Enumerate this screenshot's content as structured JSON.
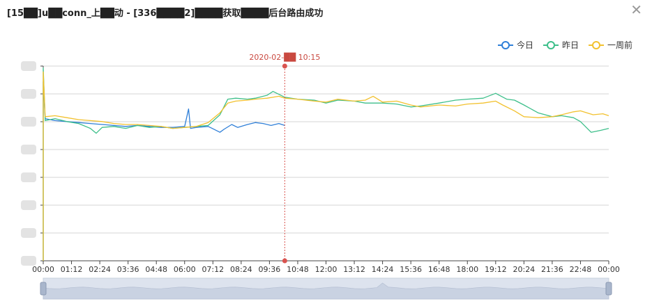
{
  "window": {
    "title": "[15██]u██conn_上██动 - [336████2]████获取████后台路由成功"
  },
  "legend": {
    "today": "今日",
    "yesterday": "昨日",
    "week_ago": "一周前",
    "placement": "top-right"
  },
  "tooltip_axis_label": "2020-02-██ 10:15",
  "colors": {
    "today": "#2f7fd8",
    "yesterday": "#3dbf8a",
    "week_ago": "#f2c12e",
    "axis_pointer": "#d9534f",
    "zoom_bg": "#dde3ee"
  },
  "icons": {
    "close": "close-icon"
  },
  "chart_data": {
    "type": "line",
    "title": "",
    "xlabel": "",
    "ylabel": "",
    "grid": true,
    "x_ticks": [
      "00:00",
      "01:12",
      "02:24",
      "03:36",
      "04:48",
      "06:00",
      "07:12",
      "08:24",
      "09:36",
      "10:48",
      "12:00",
      "13:12",
      "14:24",
      "15:36",
      "16:48",
      "18:00",
      "19:12",
      "20:24",
      "21:36",
      "22:48",
      "00:00"
    ],
    "x_range": [
      "00:00",
      "24:00"
    ],
    "y_ticks_note": "Y-axis tick labels are redacted in the screenshot",
    "cursor_time": "10:15",
    "series": [
      {
        "name": "今日",
        "points": [
          [
            "00:00",
            0.92
          ],
          [
            "00:05",
            0.73
          ],
          [
            "00:30",
            0.72
          ],
          [
            "01:00",
            0.715
          ],
          [
            "01:30",
            0.71
          ],
          [
            "02:00",
            0.705
          ],
          [
            "02:30",
            0.7
          ],
          [
            "03:00",
            0.695
          ],
          [
            "03:30",
            0.69
          ],
          [
            "04:00",
            0.695
          ],
          [
            "04:30",
            0.69
          ],
          [
            "05:00",
            0.685
          ],
          [
            "05:30",
            0.685
          ],
          [
            "06:00",
            0.69
          ],
          [
            "06:10",
            0.78
          ],
          [
            "06:15",
            0.68
          ],
          [
            "06:30",
            0.685
          ],
          [
            "07:00",
            0.69
          ],
          [
            "07:10",
            0.68
          ],
          [
            "07:30",
            0.66
          ],
          [
            "07:40",
            0.675
          ],
          [
            "08:00",
            0.7
          ],
          [
            "08:15",
            0.685
          ],
          [
            "08:40",
            0.7
          ],
          [
            "09:00",
            0.71
          ],
          [
            "09:20",
            0.705
          ],
          [
            "09:40",
            0.695
          ],
          [
            "10:00",
            0.705
          ],
          [
            "10:15",
            0.695
          ]
        ]
      },
      {
        "name": "昨日",
        "points": [
          [
            "00:00",
            0.99
          ],
          [
            "00:05",
            0.72
          ],
          [
            "00:30",
            0.73
          ],
          [
            "01:00",
            0.715
          ],
          [
            "01:30",
            0.705
          ],
          [
            "02:00",
            0.68
          ],
          [
            "02:15",
            0.655
          ],
          [
            "02:30",
            0.685
          ],
          [
            "03:00",
            0.69
          ],
          [
            "03:30",
            0.68
          ],
          [
            "04:00",
            0.695
          ],
          [
            "04:30",
            0.685
          ],
          [
            "05:00",
            0.69
          ],
          [
            "05:30",
            0.68
          ],
          [
            "06:00",
            0.685
          ],
          [
            "06:30",
            0.69
          ],
          [
            "07:00",
            0.695
          ],
          [
            "07:30",
            0.75
          ],
          [
            "07:50",
            0.83
          ],
          [
            "08:10",
            0.835
          ],
          [
            "08:40",
            0.83
          ],
          [
            "09:00",
            0.835
          ],
          [
            "09:30",
            0.85
          ],
          [
            "09:45",
            0.87
          ],
          [
            "10:15",
            0.84
          ],
          [
            "10:48",
            0.83
          ],
          [
            "11:30",
            0.825
          ],
          [
            "12:00",
            0.81
          ],
          [
            "12:30",
            0.825
          ],
          [
            "13:12",
            0.82
          ],
          [
            "13:40",
            0.81
          ],
          [
            "14:24",
            0.81
          ],
          [
            "15:00",
            0.805
          ],
          [
            "15:36",
            0.79
          ],
          [
            "16:00",
            0.795
          ],
          [
            "16:48",
            0.81
          ],
          [
            "17:30",
            0.825
          ],
          [
            "18:00",
            0.83
          ],
          [
            "18:40",
            0.835
          ],
          [
            "19:12",
            0.86
          ],
          [
            "19:40",
            0.83
          ],
          [
            "20:00",
            0.825
          ],
          [
            "20:24",
            0.8
          ],
          [
            "21:00",
            0.76
          ],
          [
            "21:36",
            0.74
          ],
          [
            "22:00",
            0.745
          ],
          [
            "22:30",
            0.735
          ],
          [
            "22:48",
            0.715
          ],
          [
            "23:15",
            0.66
          ],
          [
            "23:40",
            0.67
          ],
          [
            "24:00",
            0.68
          ]
        ]
      },
      {
        "name": "一周前",
        "points": [
          [
            "00:00",
            0.97
          ],
          [
            "00:05",
            0.74
          ],
          [
            "00:30",
            0.745
          ],
          [
            "01:00",
            0.735
          ],
          [
            "01:30",
            0.725
          ],
          [
            "02:00",
            0.72
          ],
          [
            "02:30",
            0.715
          ],
          [
            "03:00",
            0.705
          ],
          [
            "03:30",
            0.7
          ],
          [
            "04:00",
            0.7
          ],
          [
            "04:30",
            0.695
          ],
          [
            "05:00",
            0.69
          ],
          [
            "05:30",
            0.68
          ],
          [
            "06:00",
            0.685
          ],
          [
            "06:30",
            0.69
          ],
          [
            "07:00",
            0.71
          ],
          [
            "07:30",
            0.76
          ],
          [
            "07:50",
            0.81
          ],
          [
            "08:10",
            0.82
          ],
          [
            "08:40",
            0.825
          ],
          [
            "09:00",
            0.83
          ],
          [
            "09:30",
            0.835
          ],
          [
            "10:00",
            0.845
          ],
          [
            "10:15",
            0.835
          ],
          [
            "10:48",
            0.83
          ],
          [
            "11:30",
            0.82
          ],
          [
            "12:00",
            0.815
          ],
          [
            "12:30",
            0.83
          ],
          [
            "13:12",
            0.82
          ],
          [
            "13:40",
            0.825
          ],
          [
            "14:00",
            0.845
          ],
          [
            "14:24",
            0.815
          ],
          [
            "15:00",
            0.82
          ],
          [
            "15:36",
            0.8
          ],
          [
            "16:00",
            0.79
          ],
          [
            "16:48",
            0.8
          ],
          [
            "17:30",
            0.795
          ],
          [
            "18:00",
            0.805
          ],
          [
            "18:40",
            0.81
          ],
          [
            "19:12",
            0.82
          ],
          [
            "19:30",
            0.8
          ],
          [
            "20:00",
            0.77
          ],
          [
            "20:24",
            0.74
          ],
          [
            "21:00",
            0.735
          ],
          [
            "21:36",
            0.74
          ],
          [
            "22:00",
            0.75
          ],
          [
            "22:30",
            0.765
          ],
          [
            "22:48",
            0.77
          ],
          [
            "23:20",
            0.75
          ],
          [
            "23:45",
            0.755
          ],
          [
            "24:00",
            0.745
          ]
        ]
      }
    ]
  }
}
